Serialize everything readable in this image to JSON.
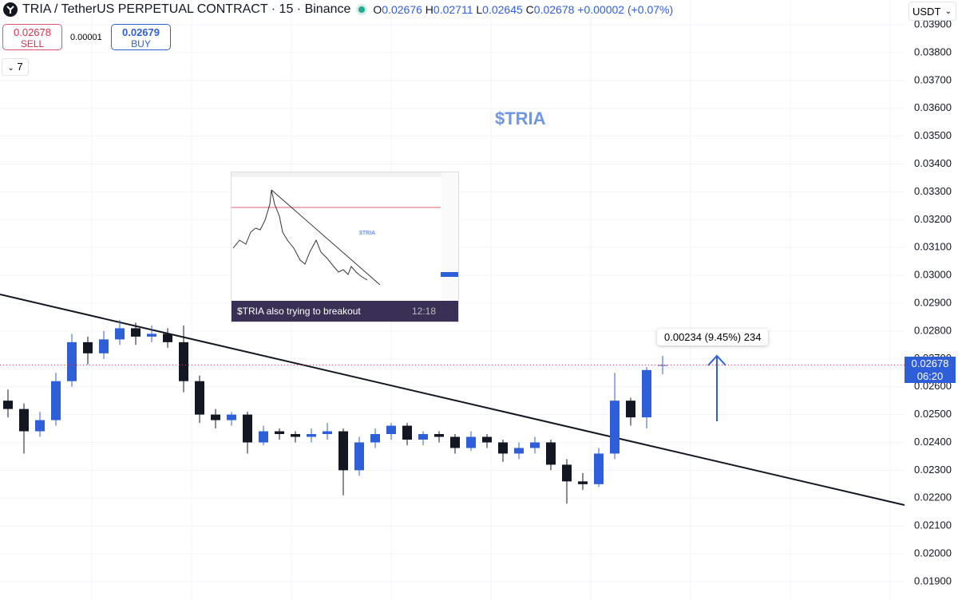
{
  "header": {
    "symbol": "TRIA / TetherUS PERPETUAL CONTRACT · 15 · Binance",
    "o": "O",
    "h": "H",
    "l": "L",
    "c": "C",
    "change": "+0.00002 (+0.07%)"
  },
  "trade": {
    "sell_price": "0.02678",
    "sell": "SELL",
    "spread": "0.00001",
    "buy_price": "0.02679",
    "buy": "BUY",
    "indicators": "7"
  },
  "currency": "USDT",
  "annotations": {
    "title": "$TRIA",
    "measure": "0.00234 (9.45%) 234",
    "countdown": "06:20"
  },
  "inset": {
    "title": "$TRIA",
    "caption": "$TRIA also trying to breakout",
    "time": "12:18"
  },
  "chart_data": {
    "type": "candlestick",
    "up_color": "#2f5fd8",
    "down_color": "#131722",
    "price_line_color": "#b0456a",
    "open": [
      0.0255,
      0.0252,
      0.0244,
      0.0248,
      0.0262,
      0.0276,
      0.0272,
      0.0277,
      0.0281,
      0.0278,
      0.0279,
      0.0276,
      0.0262,
      0.025,
      0.0248,
      0.025,
      0.024,
      0.0244,
      0.0243,
      0.0242,
      0.0243,
      0.0244,
      0.023,
      0.024,
      0.0243,
      0.0246,
      0.0241,
      0.0243,
      0.0242,
      0.0238,
      0.0242,
      0.024,
      0.0236,
      0.0238,
      0.024,
      0.0232,
      0.0226,
      0.0225,
      0.0236,
      0.0255,
      0.0249,
      0.02676
    ],
    "high": [
      0.0259,
      0.0254,
      0.0251,
      0.0265,
      0.0279,
      0.0278,
      0.028,
      0.0284,
      0.0283,
      0.0282,
      0.0281,
      0.0282,
      0.0264,
      0.0252,
      0.0251,
      0.0251,
      0.0246,
      0.0245,
      0.0244,
      0.0245,
      0.0247,
      0.0245,
      0.0242,
      0.0245,
      0.0247,
      0.0247,
      0.0244,
      0.0244,
      0.0243,
      0.0244,
      0.0243,
      0.0241,
      0.024,
      0.0242,
      0.0241,
      0.0234,
      0.0229,
      0.0238,
      0.0265,
      0.0256,
      0.0267,
      0.02711
    ],
    "low": [
      0.0249,
      0.0236,
      0.0242,
      0.0246,
      0.026,
      0.0268,
      0.027,
      0.0275,
      0.0275,
      0.0276,
      0.0274,
      0.0258,
      0.0247,
      0.0245,
      0.0246,
      0.0236,
      0.0239,
      0.0241,
      0.024,
      0.024,
      0.0241,
      0.0221,
      0.0228,
      0.0238,
      0.0241,
      0.0239,
      0.0239,
      0.024,
      0.0236,
      0.0237,
      0.0238,
      0.0233,
      0.0234,
      0.0236,
      0.023,
      0.0218,
      0.0223,
      0.0224,
      0.0234,
      0.0246,
      0.0245,
      0.02645
    ],
    "close": [
      0.0252,
      0.0244,
      0.0248,
      0.0262,
      0.0276,
      0.0272,
      0.0277,
      0.0281,
      0.0278,
      0.0279,
      0.0276,
      0.0262,
      0.025,
      0.0248,
      0.025,
      0.024,
      0.0244,
      0.0243,
      0.0242,
      0.0243,
      0.0244,
      0.023,
      0.024,
      0.0243,
      0.0246,
      0.0241,
      0.0243,
      0.0242,
      0.0238,
      0.0242,
      0.024,
      0.0236,
      0.0238,
      0.024,
      0.0232,
      0.0226,
      0.0225,
      0.0236,
      0.0255,
      0.0249,
      0.0266,
      0.02678
    ],
    "ylim": [
      0.01834,
      0.03989
    ],
    "yticks": [
      {
        "value": 0.019,
        "label": "0.01900"
      },
      {
        "value": 0.02,
        "label": "0.02000"
      },
      {
        "value": 0.021,
        "label": "0.02100"
      },
      {
        "value": 0.022,
        "label": "0.02200"
      },
      {
        "value": 0.023,
        "label": "0.02300"
      },
      {
        "value": 0.024,
        "label": "0.02400"
      },
      {
        "value": 0.025,
        "label": "0.02500"
      },
      {
        "value": 0.026,
        "label": "0.02600"
      },
      {
        "value": 0.027,
        "label": "0.02700"
      },
      {
        "value": 0.028,
        "label": "0.02800"
      },
      {
        "value": 0.029,
        "label": "0.02900"
      },
      {
        "value": 0.03,
        "label": "0.03000"
      },
      {
        "value": 0.031,
        "label": "0.03100"
      },
      {
        "value": 0.032,
        "label": "0.03200"
      },
      {
        "value": 0.033,
        "label": "0.03300"
      },
      {
        "value": 0.034,
        "label": "0.03400"
      },
      {
        "value": 0.035,
        "label": "0.03500"
      },
      {
        "value": 0.036,
        "label": "0.03600"
      },
      {
        "value": 0.037,
        "label": "0.03700"
      },
      {
        "value": 0.038,
        "label": "0.03800"
      },
      {
        "value": 0.039,
        "label": "0.03900"
      }
    ],
    "grid": true
  }
}
